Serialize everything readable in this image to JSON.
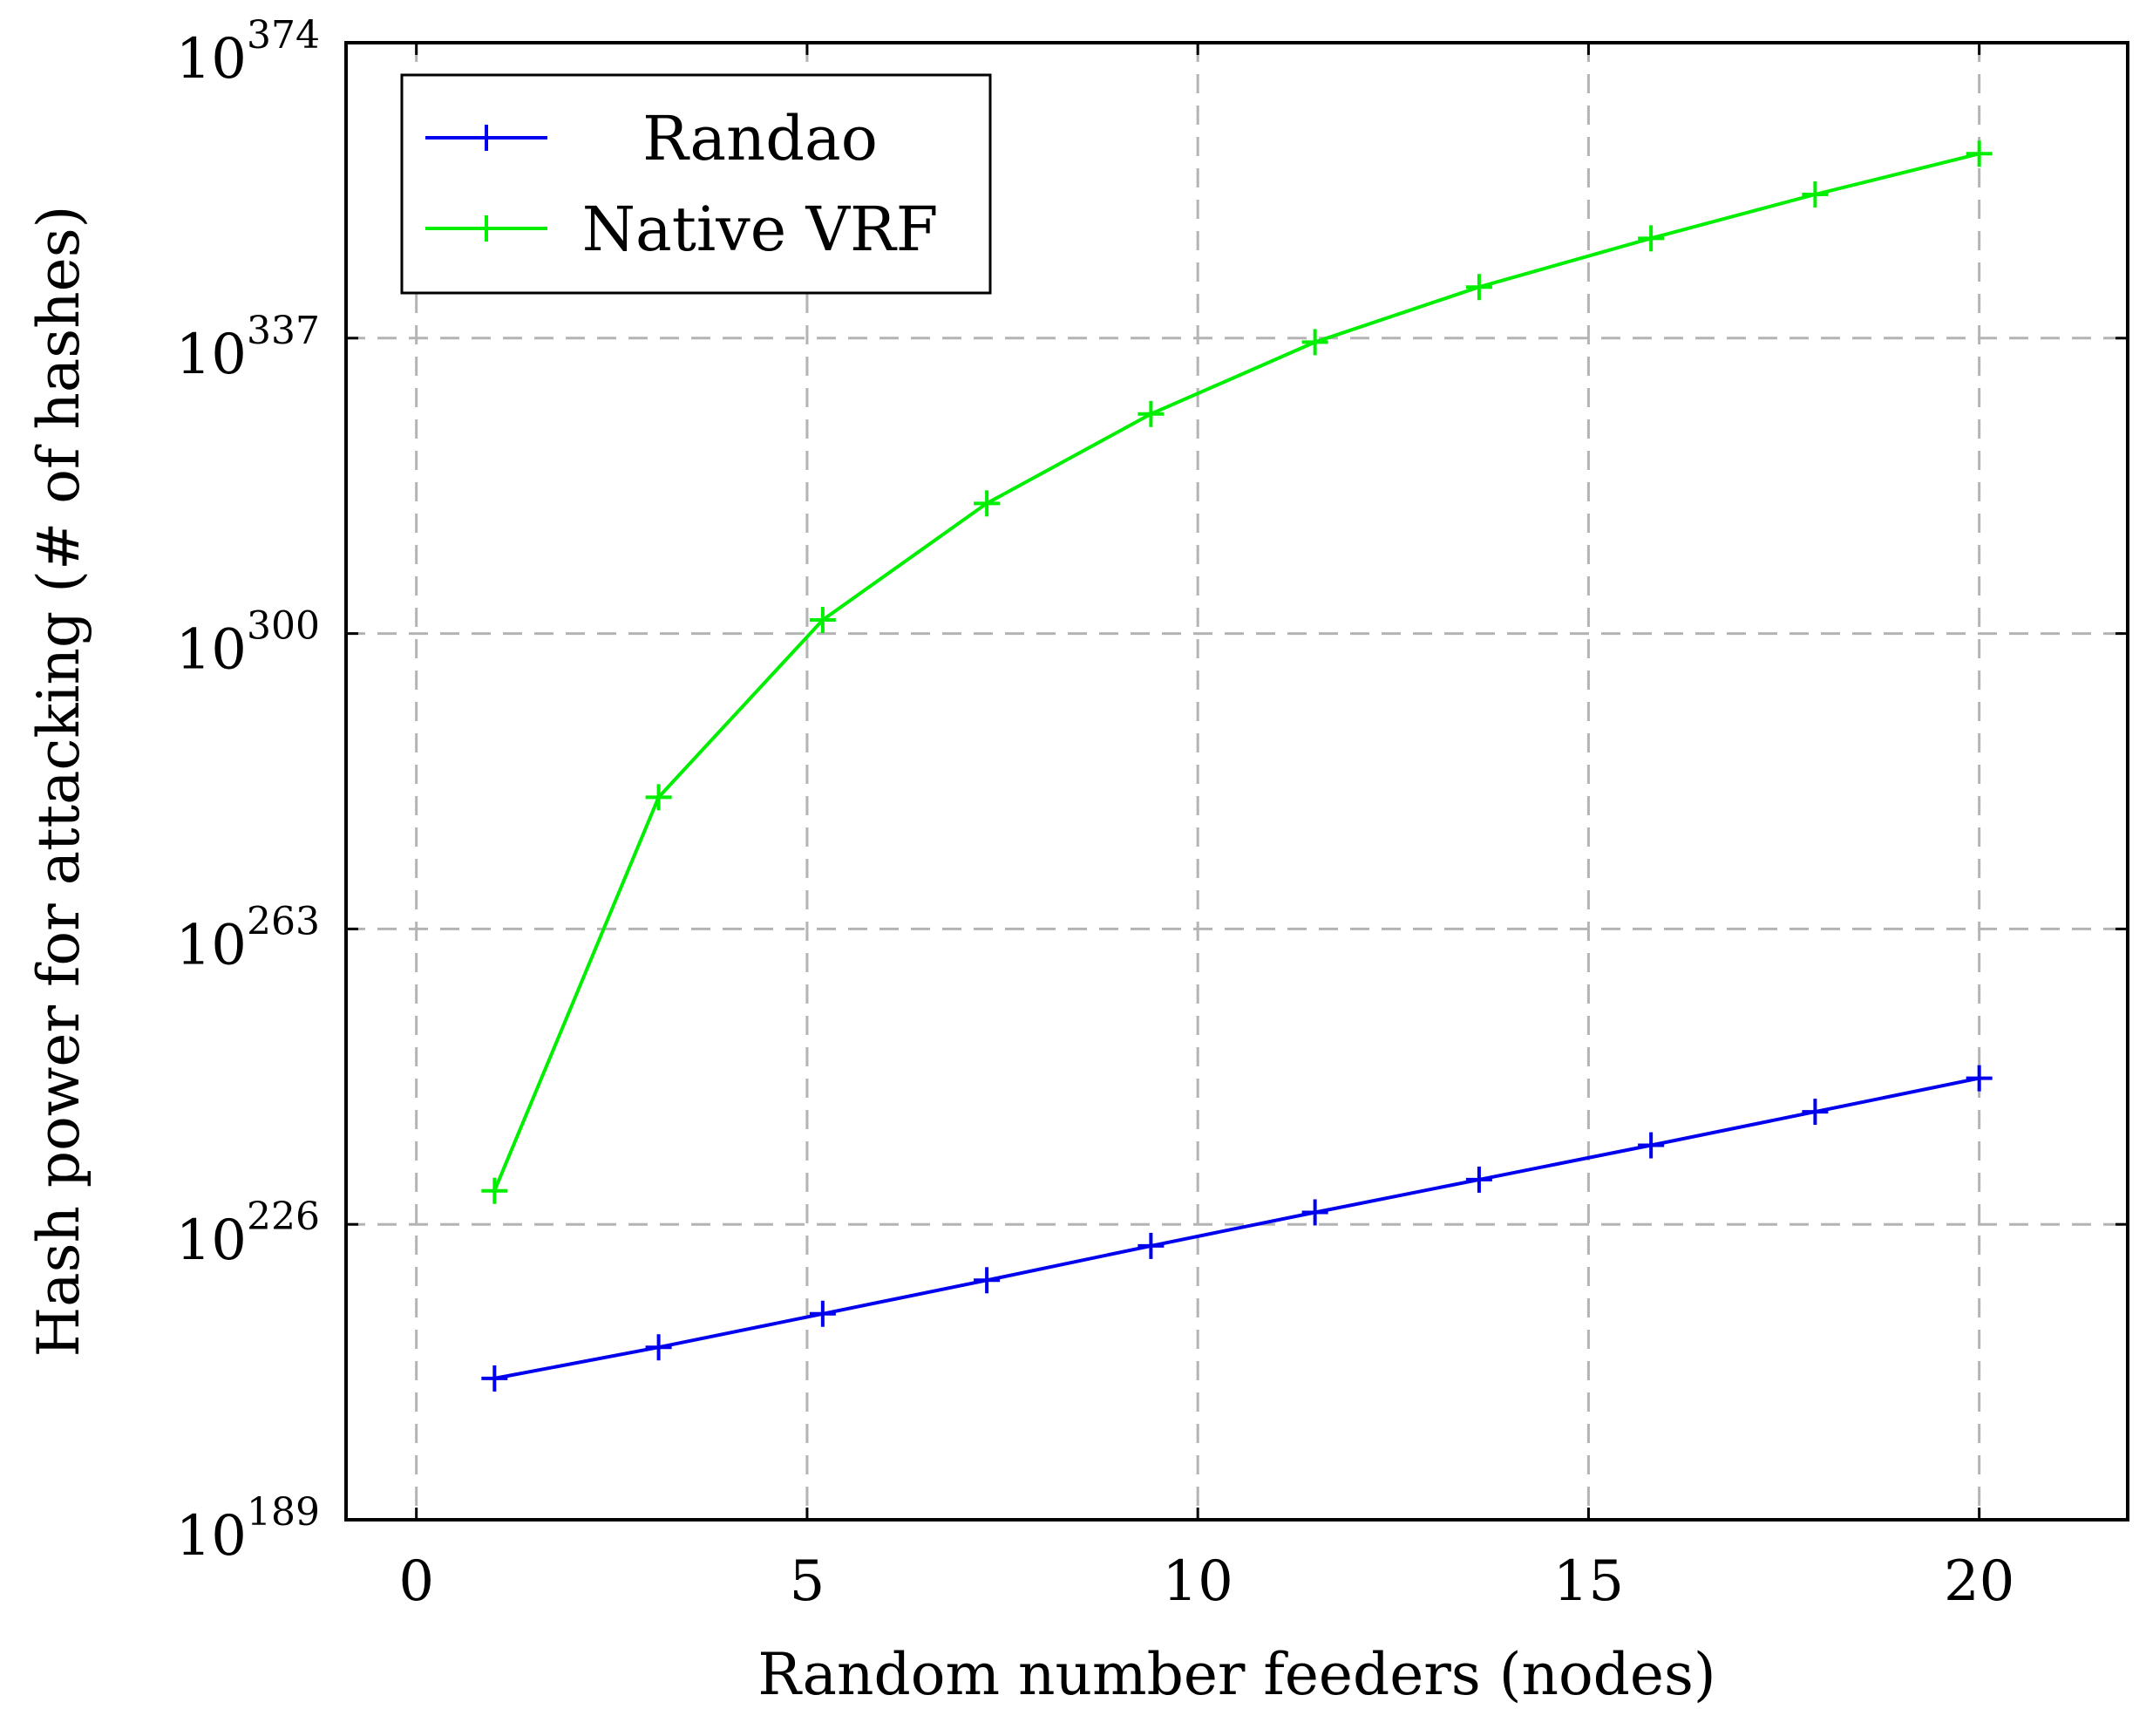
{
  "chart_data": {
    "type": "line",
    "title": "",
    "xlabel": "Random number feeders (nodes)",
    "ylabel": "Hash power for attacking (# of hashes)",
    "xlim": [
      -0.9,
      21.9
    ],
    "ylim_exponent": [
      189,
      374
    ],
    "y_scale": "log10",
    "grid": true,
    "x_ticks": [
      {
        "value": 0,
        "label": "0"
      },
      {
        "value": 5,
        "label": "5"
      },
      {
        "value": 10,
        "label": "10"
      },
      {
        "value": 15,
        "label": "15"
      },
      {
        "value": 20,
        "label": "20"
      }
    ],
    "y_ticks": [
      {
        "exponent": 189,
        "base": "10",
        "sup": "189"
      },
      {
        "exponent": 226,
        "base": "10",
        "sup": "226"
      },
      {
        "exponent": 263,
        "base": "10",
        "sup": "263"
      },
      {
        "exponent": 300,
        "base": "10",
        "sup": "300"
      },
      {
        "exponent": 337,
        "base": "10",
        "sup": "337"
      },
      {
        "exponent": 374,
        "base": "10",
        "sup": "374"
      }
    ],
    "legend_position": "top-left",
    "series": [
      {
        "name": "Randao",
        "color": "#0000ee",
        "marker": "plus",
        "points": [
          {
            "x": 1,
            "log10y": 206.7
          },
          {
            "x": 3.1,
            "log10y": 210.6
          },
          {
            "x": 5.2,
            "log10y": 214.8
          },
          {
            "x": 7.3,
            "log10y": 219.0
          },
          {
            "x": 9.4,
            "log10y": 223.3
          },
          {
            "x": 11.5,
            "log10y": 227.5
          },
          {
            "x": 13.6,
            "log10y": 231.6
          },
          {
            "x": 15.8,
            "log10y": 235.9
          },
          {
            "x": 17.9,
            "log10y": 240.1
          },
          {
            "x": 20,
            "log10y": 244.3
          }
        ]
      },
      {
        "name": "Native VRF",
        "color": "#00ee00",
        "marker": "plus",
        "points": [
          {
            "x": 1,
            "log10y": 230.2
          },
          {
            "x": 3.1,
            "log10y": 279.5
          },
          {
            "x": 5.2,
            "log10y": 301.7
          },
          {
            "x": 7.3,
            "log10y": 316.3
          },
          {
            "x": 9.4,
            "log10y": 327.5
          },
          {
            "x": 11.5,
            "log10y": 336.5
          },
          {
            "x": 13.6,
            "log10y": 343.4
          },
          {
            "x": 15.8,
            "log10y": 349.5
          },
          {
            "x": 17.9,
            "log10y": 355.0
          },
          {
            "x": 20,
            "log10y": 360.1
          }
        ]
      }
    ]
  }
}
